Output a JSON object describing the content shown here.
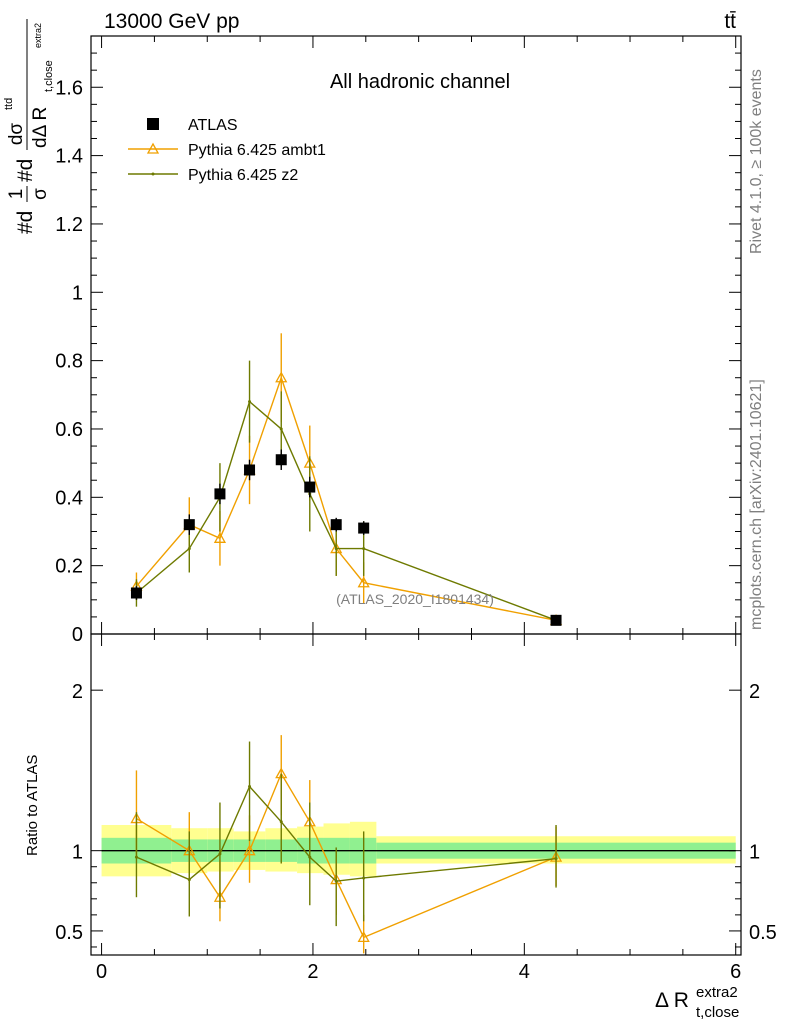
{
  "header": {
    "left": "13000 GeV pp",
    "right": "tt̄"
  },
  "side_labels": {
    "rivet": "Rivet 4.1.0, ≥ 100k events",
    "mcplots": "mcplots.cern.ch [arXiv:2401.10621]"
  },
  "colors": {
    "data": "#000000",
    "ambt1": "#f0a000",
    "z2": "#6e7a00",
    "band_inner": "#90f090",
    "band_outer": "#ffff90"
  },
  "chart_data": [
    {
      "type": "scatter",
      "title": "All hadronic channel",
      "watermark": "(ATLAS_2020_I1801434)",
      "ylabel_main": "#d",
      "ylabel_frac_num": "1",
      "ylabel_frac_den": "σ",
      "ylabel_mid": "#d",
      "ylabel_d_num": "dσ",
      "ylabel_d_num_sup": "ttd",
      "ylabel_d_den": "dΔ R",
      "ylabel_d_den_sub": "t,close",
      "ylabel_d_den_sup": "extra2",
      "xlim": [
        -0.1,
        6.05
      ],
      "ylim": [
        0,
        1.75
      ],
      "yticks": [
        0,
        0.2,
        0.4,
        0.6,
        0.8,
        1,
        1.2,
        1.4,
        1.6
      ],
      "ytick_labels": [
        "0",
        "0.2",
        "0.4",
        "0.6",
        "0.8",
        "1",
        "1.2",
        "1.4",
        "1.6"
      ],
      "legend": [
        "ATLAS",
        "Pythia 6.425 ambt1",
        "Pythia 6.425 z2"
      ],
      "series": [
        {
          "name": "ATLAS",
          "x": [
            0.33,
            0.83,
            1.12,
            1.4,
            1.7,
            1.97,
            2.22,
            2.48,
            4.3
          ],
          "y": [
            0.12,
            0.32,
            0.41,
            0.48,
            0.51,
            0.43,
            0.32,
            0.31,
            0.04
          ],
          "yerr": [
            0.02,
            0.03,
            0.03,
            0.03,
            0.03,
            0.03,
            0.02,
            0.02,
            0.005
          ],
          "bins": [
            [
              0.0,
              0.66
            ],
            [
              0.66,
              1.0
            ],
            [
              1.0,
              1.25
            ],
            [
              1.25,
              1.55
            ],
            [
              1.55,
              1.85
            ],
            [
              1.85,
              2.1
            ],
            [
              2.1,
              2.35
            ],
            [
              2.35,
              2.6
            ],
            [
              2.6,
              6.0
            ]
          ]
        },
        {
          "name": "Pythia 6.425 ambt1",
          "x": [
            0.33,
            0.83,
            1.12,
            1.4,
            1.7,
            1.97,
            2.22,
            2.48,
            4.3
          ],
          "y": [
            0.14,
            0.32,
            0.28,
            0.48,
            0.75,
            0.5,
            0.25,
            0.15,
            0.04
          ],
          "yerr": [
            0.04,
            0.08,
            0.08,
            0.1,
            0.13,
            0.11,
            0.08,
            0.06,
            0.005
          ]
        },
        {
          "name": "Pythia 6.425 z2",
          "x": [
            0.33,
            0.83,
            1.12,
            1.4,
            1.7,
            1.97,
            2.22,
            2.48,
            4.3
          ],
          "y": [
            0.12,
            0.25,
            0.4,
            0.68,
            0.6,
            0.41,
            0.25,
            0.25,
            0.04
          ],
          "yerr": [
            0.04,
            0.07,
            0.1,
            0.12,
            0.11,
            0.11,
            0.08,
            0.08,
            0.005
          ]
        }
      ]
    },
    {
      "type": "line",
      "ylabel": "Ratio to ATLAS",
      "xlabel": "Δ R",
      "xlabel_sup": "extra2",
      "xlabel_sub": "t,close",
      "xlim": [
        -0.1,
        6.05
      ],
      "ylim": [
        0.35,
        2.35
      ],
      "xticks": [
        0,
        2,
        4,
        6
      ],
      "xtick_labels": [
        "0",
        "2",
        "4",
        "6"
      ],
      "yticks": [
        0.5,
        1,
        2
      ],
      "ytick_labels": [
        "0.5",
        "1",
        "2"
      ],
      "bands": {
        "bins": [
          [
            0.0,
            0.66
          ],
          [
            0.66,
            1.0
          ],
          [
            1.0,
            1.25
          ],
          [
            1.25,
            1.55
          ],
          [
            1.55,
            1.85
          ],
          [
            1.85,
            2.1
          ],
          [
            2.1,
            2.35
          ],
          [
            2.35,
            2.6
          ],
          [
            2.6,
            6.0
          ]
        ],
        "inner": [
          [
            0.92,
            1.08
          ],
          [
            0.93,
            1.07
          ],
          [
            0.93,
            1.07
          ],
          [
            0.93,
            1.07
          ],
          [
            0.93,
            1.07
          ],
          [
            0.92,
            1.08
          ],
          [
            0.92,
            1.08
          ],
          [
            0.92,
            1.08
          ],
          [
            0.95,
            1.05
          ]
        ],
        "outer": [
          [
            0.84,
            1.16
          ],
          [
            0.86,
            1.14
          ],
          [
            0.87,
            1.14
          ],
          [
            0.88,
            1.12
          ],
          [
            0.87,
            1.14
          ],
          [
            0.86,
            1.15
          ],
          [
            0.85,
            1.17
          ],
          [
            0.84,
            1.18
          ],
          [
            0.92,
            1.09
          ]
        ]
      },
      "series": [
        {
          "name": "Pythia 6.425 ambt1",
          "x": [
            0.33,
            0.83,
            1.12,
            1.4,
            1.7,
            1.97,
            2.22,
            2.48,
            4.3
          ],
          "y": [
            1.2,
            1.0,
            0.71,
            1.0,
            1.48,
            1.18,
            0.82,
            0.46,
            0.96
          ],
          "err": [
            [
              0.96,
              1.5
            ],
            [
              0.8,
              1.24
            ],
            [
              0.56,
              0.94
            ],
            [
              0.8,
              1.22
            ],
            [
              1.22,
              1.72
            ],
            [
              0.9,
              1.44
            ],
            [
              0.6,
              1.0
            ],
            [
              0.36,
              0.6
            ],
            [
              0.78,
              1.15
            ]
          ]
        },
        {
          "name": "Pythia 6.425 z2",
          "x": [
            0.33,
            0.83,
            1.12,
            1.4,
            1.7,
            1.97,
            2.22,
            2.48,
            4.3
          ],
          "y": [
            0.96,
            0.82,
            0.98,
            1.4,
            1.18,
            0.96,
            0.81,
            0.83,
            0.95
          ],
          "err": [
            [
              0.71,
              1.24
            ],
            [
              0.59,
              1.12
            ],
            [
              0.64,
              1.3
            ],
            [
              1.06,
              1.68
            ],
            [
              0.92,
              1.48
            ],
            [
              0.66,
              1.3
            ],
            [
              0.53,
              1.02
            ],
            [
              0.56,
              1.12
            ],
            [
              0.77,
              1.16
            ]
          ]
        }
      ]
    }
  ]
}
